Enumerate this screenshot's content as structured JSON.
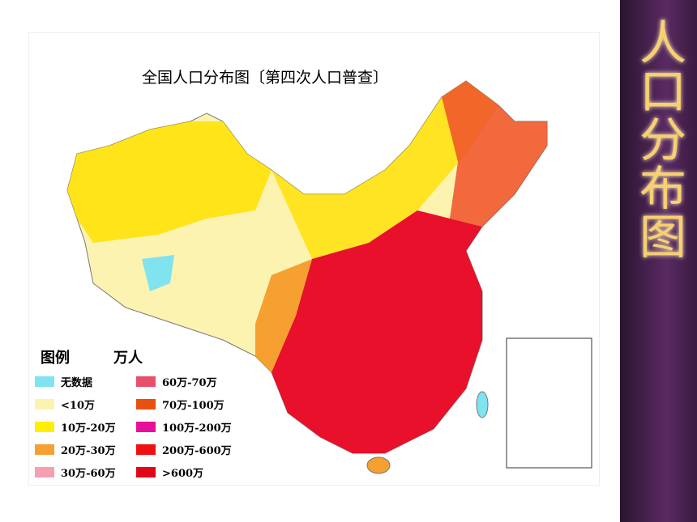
{
  "slide_title": "人口分布图",
  "map": {
    "title": "全国人口分布图〔第四次人口普查〕",
    "legend": {
      "title": "图例",
      "unit": "万人",
      "items": [
        {
          "label": "无数据",
          "color": "#7fe3f0"
        },
        {
          "label": "<10万",
          "color": "#fdf3b0"
        },
        {
          "label": "10万-20万",
          "color": "#ffee00"
        },
        {
          "label": "20万-30万",
          "color": "#f5a030"
        },
        {
          "label": "30万-60万",
          "color": "#f5a0b0"
        },
        {
          "label": "60万-70万",
          "color": "#e8506a"
        },
        {
          "label": "70万-100万",
          "color": "#e85010"
        },
        {
          "label": "100万-200万",
          "color": "#e8109a"
        },
        {
          "label": "200万-600万",
          "color": "#f01010"
        },
        {
          "label": ">600万",
          "color": "#e00818"
        }
      ]
    }
  }
}
